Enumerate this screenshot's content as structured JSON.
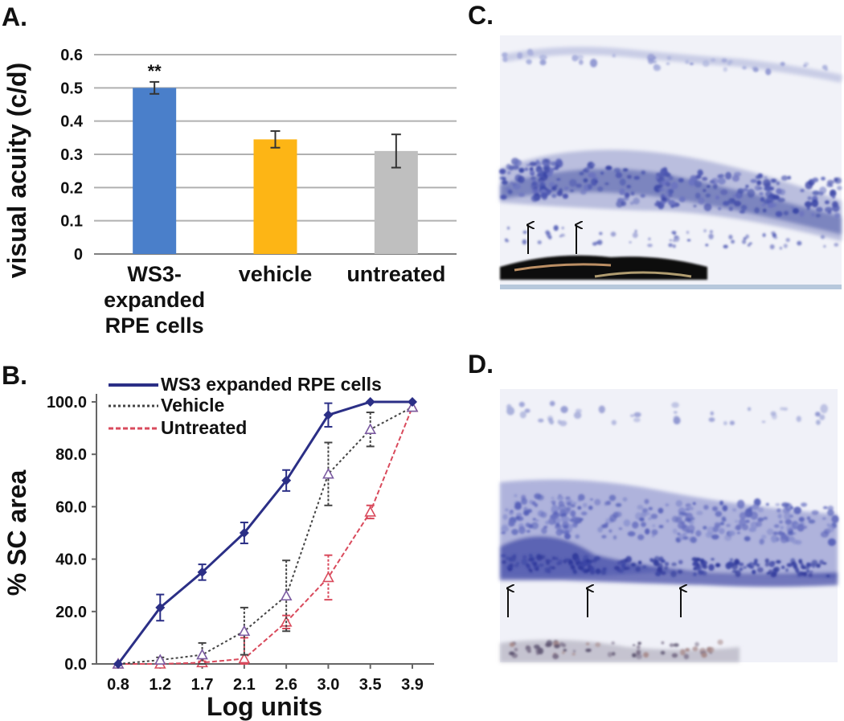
{
  "panels": {
    "a": "A.",
    "b": "B.",
    "c": "C.",
    "d": "D."
  },
  "chart_data": [
    {
      "panel": "A.",
      "type": "bar",
      "ylabel": "visual acuity (c/d)",
      "xlabel": "",
      "ylim": [
        0,
        0.6
      ],
      "yticks": [
        "0",
        "0.1",
        "0.2",
        "0.3",
        "0.4",
        "0.5",
        "0.6"
      ],
      "grid": true,
      "categories": [
        [
          "WS3-",
          "expanded",
          "RPE cells"
        ],
        [
          "vehicle"
        ],
        [
          "untreated"
        ]
      ],
      "values": [
        0.5,
        0.345,
        0.31
      ],
      "errors": [
        0.018,
        0.025,
        0.05
      ],
      "colors": [
        "#4a7fca",
        "#fdb515",
        "#bfbfbf"
      ],
      "annotations": [
        {
          "category_index": 0,
          "text": "**"
        }
      ]
    },
    {
      "panel": "B.",
      "type": "line",
      "ylabel": "% SC area",
      "xlabel": "Log units",
      "ylim": [
        0,
        100
      ],
      "yticks": [
        "0.0",
        "20.0",
        "40.0",
        "60.0",
        "80.0",
        "100.0"
      ],
      "x": [
        "0.8",
        "1.2",
        "1.7",
        "2.1",
        "2.6",
        "3.0",
        "3.5",
        "3.9"
      ],
      "legend_position": "top",
      "series": [
        {
          "name": "WS3 expanded RPE cells",
          "color": "#2b2f86",
          "style": "solid",
          "marker": "diamond",
          "values": [
            0,
            21.5,
            35,
            50,
            70,
            95,
            100,
            100
          ],
          "errors": [
            0,
            5,
            3,
            4,
            4,
            4.5,
            0,
            0
          ]
        },
        {
          "name": "Vehicle",
          "color": "#444444",
          "style": "dotted",
          "marker": "triangle-open",
          "values": [
            0,
            1.5,
            3.5,
            12.5,
            26,
            72.5,
            89.5,
            98
          ],
          "errors": [
            0,
            1,
            4.5,
            9,
            13.5,
            12,
            6.5,
            0
          ]
        },
        {
          "name": "Untreated",
          "color": "#d94a5c",
          "style": "dashed",
          "marker": "triangle-open",
          "values": [
            0,
            0,
            0.5,
            2,
            16,
            33,
            58,
            98
          ],
          "errors": [
            0,
            0,
            0.5,
            8,
            2.5,
            8.5,
            2.5,
            0
          ]
        }
      ]
    }
  ],
  "images": [
    {
      "panel": "C.",
      "arrows": 2
    },
    {
      "panel": "D.",
      "arrows": 3
    }
  ]
}
